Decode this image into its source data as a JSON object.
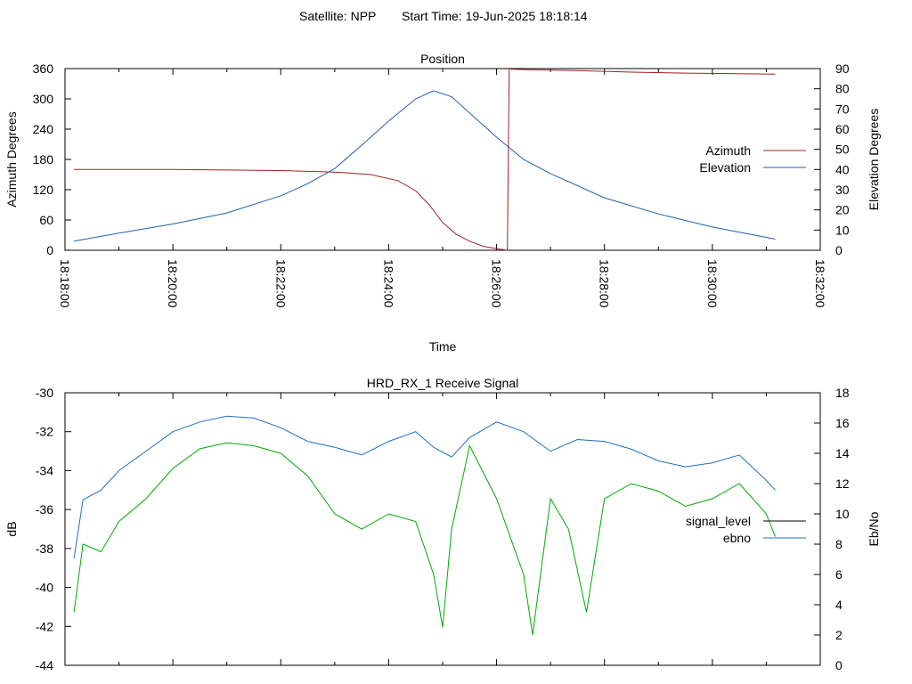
{
  "header": {
    "satellite_text": "Satellite: NPP",
    "start_time_text": "Start Time: 19-Jun-2025 18:18:14"
  },
  "colors": {
    "azimuth": "#a02020",
    "elevation": "#2060b0",
    "signal_level": "#1f6fbf",
    "ebno": "#00aa00",
    "signal_legend_swatch": "#000000"
  },
  "chart_data": [
    {
      "type": "line",
      "title": "Position",
      "xlabel": "Time",
      "ylabel": "Azimuth Degrees",
      "y2label": "Elevation Degrees",
      "x_ticks": [
        "18:18:00",
        "18:20:00",
        "18:22:00",
        "18:24:00",
        "18:26:00",
        "18:28:00",
        "18:30:00",
        "18:32:00"
      ],
      "x_range": [
        "18:18:00",
        "18:32:00"
      ],
      "ylim": [
        0,
        360
      ],
      "y_ticks": [
        0,
        60,
        120,
        180,
        240,
        300,
        360
      ],
      "y2lim": [
        0,
        90
      ],
      "y2_ticks": [
        0,
        10,
        20,
        30,
        40,
        50,
        60,
        70,
        80,
        90
      ],
      "legend": "right",
      "series": [
        {
          "name": "Azimuth",
          "axis": "y",
          "x": [
            "18:18:10",
            "18:20:00",
            "18:22:00",
            "18:23:00",
            "18:23:40",
            "18:24:10",
            "18:24:30",
            "18:24:45",
            "18:25:00",
            "18:25:15",
            "18:25:30",
            "18:25:45",
            "18:26:00",
            "18:26:12",
            "18:26:14",
            "18:26:16",
            "18:26:30",
            "18:27:30",
            "18:28:30",
            "18:29:30",
            "18:30:30",
            "18:31:10"
          ],
          "values": [
            160,
            160,
            158,
            155,
            150,
            138,
            118,
            90,
            55,
            32,
            18,
            8,
            3,
            0,
            360,
            359,
            358,
            356,
            353,
            351,
            350,
            349
          ]
        },
        {
          "name": "Elevation",
          "axis": "y2",
          "x": [
            "18:18:10",
            "18:19:00",
            "18:20:00",
            "18:21:00",
            "18:22:00",
            "18:22:30",
            "18:23:00",
            "18:23:30",
            "18:24:00",
            "18:24:30",
            "18:24:50",
            "18:25:10",
            "18:25:30",
            "18:26:00",
            "18:26:30",
            "18:27:00",
            "18:28:00",
            "18:29:00",
            "18:30:00",
            "18:31:10"
          ],
          "values": [
            4.5,
            8.5,
            13,
            18.5,
            27,
            33,
            40.5,
            52,
            64,
            75,
            79,
            76,
            68,
            56,
            45,
            38,
            26,
            18,
            11.5,
            5.5
          ]
        }
      ]
    },
    {
      "type": "line",
      "title": "HRD_RX_1 Receive Signal",
      "xlabel": "",
      "ylabel": "dB",
      "y2label": "Eb/No",
      "x_range": [
        "18:18:00",
        "18:32:00"
      ],
      "ylim": [
        -44,
        -30
      ],
      "y_ticks": [
        -44,
        -42,
        -40,
        -38,
        -36,
        -34,
        -32,
        -30
      ],
      "y2lim": [
        0,
        18
      ],
      "y2_ticks": [
        0,
        2,
        4,
        6,
        8,
        10,
        12,
        14,
        16,
        18
      ],
      "legend": "right",
      "series": [
        {
          "name": "signal_level",
          "axis": "y",
          "x": [
            "18:18:10",
            "18:18:20",
            "18:18:40",
            "18:19:00",
            "18:19:30",
            "18:20:00",
            "18:20:30",
            "18:21:00",
            "18:21:30",
            "18:22:00",
            "18:22:30",
            "18:23:00",
            "18:23:30",
            "18:24:00",
            "18:24:30",
            "18:24:50",
            "18:25:10",
            "18:25:30",
            "18:26:00",
            "18:26:30",
            "18:27:00",
            "18:27:30",
            "18:28:00",
            "18:28:30",
            "18:29:00",
            "18:29:30",
            "18:30:00",
            "18:30:30",
            "18:31:00",
            "18:31:10"
          ],
          "values": [
            -38.5,
            -35.5,
            -35,
            -34,
            -33,
            -32,
            -31.5,
            -31.2,
            -31.3,
            -31.8,
            -32.5,
            -32.8,
            -33.2,
            -32.5,
            -32,
            -32.8,
            -33.3,
            -32.3,
            -31.5,
            -32,
            -33,
            -32.4,
            -32.5,
            -32.9,
            -33.5,
            -33.8,
            -33.6,
            -33.2,
            -34.5,
            -35
          ]
        },
        {
          "name": "ebno",
          "axis": "y2",
          "x": [
            "18:18:10",
            "18:18:20",
            "18:18:40",
            "18:19:00",
            "18:19:30",
            "18:20:00",
            "18:20:30",
            "18:21:00",
            "18:21:30",
            "18:22:00",
            "18:22:30",
            "18:23:00",
            "18:23:30",
            "18:24:00",
            "18:24:30",
            "18:24:50",
            "18:25:00",
            "18:25:10",
            "18:25:30",
            "18:26:00",
            "18:26:30",
            "18:26:40",
            "18:27:00",
            "18:27:20",
            "18:27:40",
            "18:28:00",
            "18:28:30",
            "18:29:00",
            "18:29:30",
            "18:30:00",
            "18:30:30",
            "18:31:00",
            "18:31:10"
          ],
          "values": [
            3.5,
            8,
            7.5,
            9.5,
            11,
            13,
            14.3,
            14.7,
            14.5,
            14,
            12.5,
            10,
            9,
            10,
            9.5,
            6,
            2.5,
            9,
            14.5,
            11,
            6,
            2,
            11,
            9,
            3.5,
            11,
            12,
            11.5,
            10.5,
            11,
            12,
            10,
            8.5
          ]
        }
      ]
    }
  ]
}
